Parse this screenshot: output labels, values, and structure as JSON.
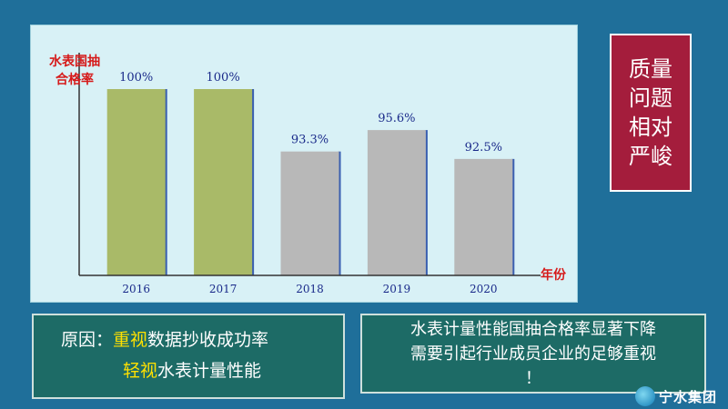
{
  "chart_data": {
    "type": "bar",
    "categories": [
      "2016",
      "2017",
      "2018",
      "2019",
      "2020"
    ],
    "values": [
      100,
      100,
      93.3,
      95.6,
      92.5
    ],
    "value_labels": [
      "100%",
      "100%",
      "93.3%",
      "95.6%",
      "92.5%"
    ],
    "ylabel": "水表国抽\n合格率",
    "xlabel": "年份",
    "ylim": [
      80,
      100
    ],
    "grid": false,
    "colors": {
      "highlight": "#a9ba68",
      "normal": "#b8b8b8",
      "label": "#1a2a8a",
      "axis_title": "#d61a1a"
    },
    "highlight_categories": [
      "2016",
      "2017"
    ]
  },
  "title_box": {
    "text": "质量\n问题\n相对\n严峻"
  },
  "reason": {
    "prefix": "原因：",
    "line1_highlight": "重视",
    "line1_rest": "数据抄收成功率",
    "line2_highlight": "轻视",
    "line2_rest": "水表计量性能"
  },
  "note": {
    "text": "水表计量性能国抽合格率显著下降\n需要引起行业成员企业的足够重视\n！"
  },
  "logo": {
    "name": "宁水集团"
  }
}
